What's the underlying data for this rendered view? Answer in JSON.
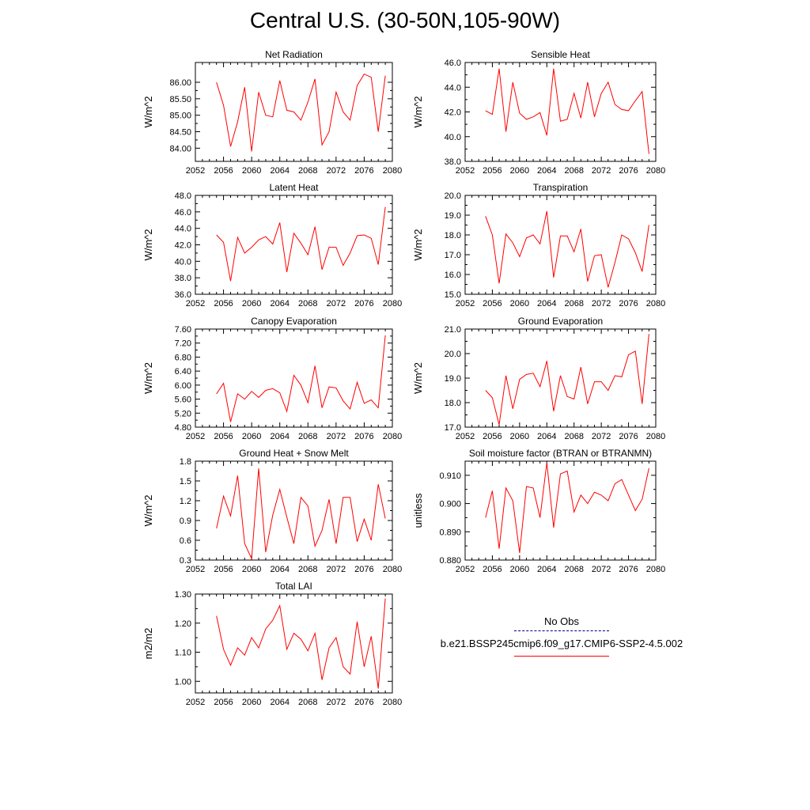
{
  "page_title": "Central U.S. (30-50N,105-90W)",
  "colors": {
    "model": "#ff0000",
    "obs": "#000080",
    "axis": "#000000"
  },
  "legend": {
    "items": [
      {
        "label": "No Obs",
        "style": "dashed",
        "color": "#000080"
      },
      {
        "label": "b.e21.BSSP245cmip6.f09_g17.CMIP6-SSP2-4.5.002",
        "style": "solid",
        "color": "#ff0000"
      }
    ]
  },
  "chart_data": [
    {
      "type": "line",
      "title": "Net Radiation",
      "ylabel": "W/m^2",
      "xlim": [
        2052,
        2080
      ],
      "ylim": [
        83.6,
        86.6
      ],
      "xticks": [
        2052,
        2056,
        2060,
        2064,
        2068,
        2072,
        2076,
        2080
      ],
      "yticks": [
        "84.00",
        "84.50",
        "85.00",
        "85.50",
        "86.00"
      ],
      "x": [
        2055,
        2056,
        2057,
        2058,
        2059,
        2060,
        2061,
        2062,
        2063,
        2064,
        2065,
        2066,
        2067,
        2068,
        2069,
        2070,
        2071,
        2072,
        2073,
        2074,
        2075,
        2076,
        2077,
        2078,
        2079
      ],
      "series": [
        {
          "name": "b.e21.BSSP245cmip6.f09_g17.CMIP6-SSP2-4.5.002",
          "values": [
            86.0,
            85.3,
            84.05,
            84.8,
            85.85,
            83.9,
            85.7,
            85.0,
            84.95,
            86.05,
            85.15,
            85.1,
            84.85,
            85.4,
            86.1,
            84.1,
            84.5,
            85.7,
            85.1,
            84.85,
            85.9,
            86.25,
            86.15,
            84.5,
            86.2
          ]
        }
      ]
    },
    {
      "type": "line",
      "title": "Sensible Heat",
      "ylabel": "W/m^2",
      "xlim": [
        2052,
        2080
      ],
      "ylim": [
        38.0,
        46.0
      ],
      "xticks": [
        2052,
        2056,
        2060,
        2064,
        2068,
        2072,
        2076,
        2080
      ],
      "yticks": [
        "38.0",
        "40.0",
        "42.0",
        "44.0",
        "46.0"
      ],
      "x": [
        2055,
        2056,
        2057,
        2058,
        2059,
        2060,
        2061,
        2062,
        2063,
        2064,
        2065,
        2066,
        2067,
        2068,
        2069,
        2070,
        2071,
        2072,
        2073,
        2074,
        2075,
        2076,
        2077,
        2078,
        2079
      ],
      "series": [
        {
          "name": "b.e21.BSSP245cmip6.f09_g17.CMIP6-SSP2-4.5.002",
          "values": [
            42.1,
            41.8,
            45.5,
            40.4,
            44.4,
            41.9,
            41.4,
            41.6,
            41.95,
            40.1,
            45.5,
            41.25,
            41.4,
            43.5,
            41.5,
            44.4,
            41.6,
            43.5,
            44.4,
            42.6,
            42.2,
            42.1,
            42.9,
            43.65,
            38.6
          ]
        }
      ]
    },
    {
      "type": "line",
      "title": "Latent Heat",
      "ylabel": "W/m^2",
      "xlim": [
        2052,
        2080
      ],
      "ylim": [
        36.0,
        48.0
      ],
      "xticks": [
        2052,
        2056,
        2060,
        2064,
        2068,
        2072,
        2076,
        2080
      ],
      "yticks": [
        "36.0",
        "38.0",
        "40.0",
        "42.0",
        "44.0",
        "46.0",
        "48.0"
      ],
      "x": [
        2055,
        2056,
        2057,
        2058,
        2059,
        2060,
        2061,
        2062,
        2063,
        2064,
        2065,
        2066,
        2067,
        2068,
        2069,
        2070,
        2071,
        2072,
        2073,
        2074,
        2075,
        2076,
        2077,
        2078,
        2079
      ],
      "series": [
        {
          "name": "b.e21.BSSP245cmip6.f09_g17.CMIP6-SSP2-4.5.002",
          "values": [
            43.2,
            42.3,
            37.6,
            42.9,
            41.0,
            41.7,
            42.6,
            43.0,
            42.1,
            44.7,
            38.7,
            43.4,
            42.2,
            40.8,
            44.2,
            39.0,
            41.7,
            41.7,
            39.5,
            41.0,
            43.1,
            43.2,
            42.8,
            39.6,
            46.6
          ]
        }
      ]
    },
    {
      "type": "line",
      "title": "Transpiration",
      "ylabel": "W/m^2",
      "xlim": [
        2052,
        2080
      ],
      "ylim": [
        15.0,
        20.0
      ],
      "xticks": [
        2052,
        2056,
        2060,
        2064,
        2068,
        2072,
        2076,
        2080
      ],
      "yticks": [
        "15.0",
        "16.0",
        "17.0",
        "18.0",
        "19.0",
        "20.0"
      ],
      "x": [
        2055,
        2056,
        2057,
        2058,
        2059,
        2060,
        2061,
        2062,
        2063,
        2064,
        2065,
        2066,
        2067,
        2068,
        2069,
        2070,
        2071,
        2072,
        2073,
        2074,
        2075,
        2076,
        2077,
        2078,
        2079
      ],
      "series": [
        {
          "name": "b.e21.BSSP245cmip6.f09_g17.CMIP6-SSP2-4.5.002",
          "values": [
            18.95,
            18.0,
            15.55,
            18.05,
            17.6,
            16.9,
            17.85,
            18.0,
            17.55,
            19.2,
            15.85,
            17.95,
            17.95,
            17.15,
            18.3,
            15.65,
            16.95,
            17.0,
            15.35,
            16.6,
            18.0,
            17.8,
            17.1,
            16.15,
            18.5
          ]
        }
      ]
    },
    {
      "type": "line",
      "title": "Canopy Evaporation",
      "ylabel": "W/m^2",
      "xlim": [
        2052,
        2080
      ],
      "ylim": [
        4.8,
        7.6
      ],
      "xticks": [
        2052,
        2056,
        2060,
        2064,
        2068,
        2072,
        2076,
        2080
      ],
      "yticks": [
        "4.80",
        "5.20",
        "5.60",
        "6.00",
        "6.40",
        "6.80",
        "7.20",
        "7.60"
      ],
      "x": [
        2055,
        2056,
        2057,
        2058,
        2059,
        2060,
        2061,
        2062,
        2063,
        2064,
        2065,
        2066,
        2067,
        2068,
        2069,
        2070,
        2071,
        2072,
        2073,
        2074,
        2075,
        2076,
        2077,
        2078,
        2079
      ],
      "series": [
        {
          "name": "b.e21.BSSP245cmip6.f09_g17.CMIP6-SSP2-4.5.002",
          "values": [
            5.75,
            6.05,
            4.95,
            5.75,
            5.6,
            5.82,
            5.65,
            5.85,
            5.9,
            5.78,
            5.25,
            6.28,
            6.0,
            5.5,
            6.55,
            5.35,
            5.95,
            5.92,
            5.55,
            5.32,
            6.08,
            5.48,
            5.58,
            5.35,
            7.42
          ]
        }
      ]
    },
    {
      "type": "line",
      "title": "Ground Evaporation",
      "ylabel": "W/m^2",
      "xlim": [
        2052,
        2080
      ],
      "ylim": [
        17.0,
        21.0
      ],
      "xticks": [
        2052,
        2056,
        2060,
        2064,
        2068,
        2072,
        2076,
        2080
      ],
      "yticks": [
        "17.0",
        "18.0",
        "19.0",
        "20.0",
        "21.0"
      ],
      "x": [
        2055,
        2056,
        2057,
        2058,
        2059,
        2060,
        2061,
        2062,
        2063,
        2064,
        2065,
        2066,
        2067,
        2068,
        2069,
        2070,
        2071,
        2072,
        2073,
        2074,
        2075,
        2076,
        2077,
        2078,
        2079
      ],
      "series": [
        {
          "name": "b.e21.BSSP245cmip6.f09_g17.CMIP6-SSP2-4.5.002",
          "values": [
            18.5,
            18.2,
            17.1,
            19.1,
            17.75,
            18.95,
            19.15,
            19.2,
            18.65,
            19.7,
            17.65,
            19.1,
            18.25,
            18.15,
            19.45,
            17.95,
            18.85,
            18.85,
            18.5,
            19.1,
            19.05,
            19.95,
            20.1,
            17.95,
            20.8
          ]
        }
      ]
    },
    {
      "type": "line",
      "title": "Ground Heat + Snow Melt",
      "ylabel": "W/m^2",
      "xlim": [
        2052,
        2080
      ],
      "ylim": [
        0.3,
        1.8
      ],
      "xticks": [
        2052,
        2056,
        2060,
        2064,
        2068,
        2072,
        2076,
        2080
      ],
      "yticks": [
        "0.3",
        "0.6",
        "0.9",
        "1.2",
        "1.5",
        "1.8"
      ],
      "x": [
        2055,
        2056,
        2057,
        2058,
        2059,
        2060,
        2061,
        2062,
        2063,
        2064,
        2065,
        2066,
        2067,
        2068,
        2069,
        2070,
        2071,
        2072,
        2073,
        2074,
        2075,
        2076,
        2077,
        2078,
        2079
      ],
      "series": [
        {
          "name": "b.e21.BSSP245cmip6.f09_g17.CMIP6-SSP2-4.5.002",
          "values": [
            0.78,
            1.27,
            0.97,
            1.58,
            0.55,
            0.32,
            1.69,
            0.42,
            0.98,
            1.37,
            0.95,
            0.55,
            1.25,
            1.12,
            0.51,
            0.75,
            1.22,
            0.55,
            1.25,
            1.25,
            0.58,
            0.92,
            0.6,
            1.45,
            0.93
          ]
        }
      ]
    },
    {
      "type": "line",
      "title": "Soil moisture factor (BTRAN or BTRANMN)",
      "ylabel": "unitless",
      "xlim": [
        2052,
        2080
      ],
      "ylim": [
        0.88,
        0.915
      ],
      "xticks": [
        2052,
        2056,
        2060,
        2064,
        2068,
        2072,
        2076,
        2080
      ],
      "yticks": [
        "0.880",
        "0.890",
        "0.900",
        "0.910"
      ],
      "x": [
        2055,
        2056,
        2057,
        2058,
        2059,
        2060,
        2061,
        2062,
        2063,
        2064,
        2065,
        2066,
        2067,
        2068,
        2069,
        2070,
        2071,
        2072,
        2073,
        2074,
        2075,
        2076,
        2077,
        2078,
        2079
      ],
      "series": [
        {
          "name": "b.e21.BSSP245cmip6.f09_g17.CMIP6-SSP2-4.5.002",
          "values": [
            0.895,
            0.9045,
            0.884,
            0.9055,
            0.901,
            0.8825,
            0.906,
            0.9055,
            0.895,
            0.9145,
            0.8915,
            0.9105,
            0.9115,
            0.897,
            0.903,
            0.9,
            0.904,
            0.903,
            0.901,
            0.907,
            0.9085,
            0.903,
            0.8975,
            0.9015,
            0.9125
          ]
        }
      ]
    },
    {
      "type": "line",
      "title": "Total LAI",
      "ylabel": "m2/m2",
      "xlim": [
        2052,
        2080
      ],
      "ylim": [
        0.96,
        1.3
      ],
      "xticks": [
        2052,
        2056,
        2060,
        2064,
        2068,
        2072,
        2076,
        2080
      ],
      "yticks": [
        "1.00",
        "1.10",
        "1.20",
        "1.30"
      ],
      "x": [
        2055,
        2056,
        2057,
        2058,
        2059,
        2060,
        2061,
        2062,
        2063,
        2064,
        2065,
        2066,
        2067,
        2068,
        2069,
        2070,
        2071,
        2072,
        2073,
        2074,
        2075,
        2076,
        2077,
        2078,
        2079
      ],
      "series": [
        {
          "name": "b.e21.BSSP245cmip6.f09_g17.CMIP6-SSP2-4.5.002",
          "values": [
            1.225,
            1.11,
            1.055,
            1.115,
            1.09,
            1.15,
            1.115,
            1.18,
            1.21,
            1.26,
            1.11,
            1.165,
            1.145,
            1.105,
            1.165,
            1.005,
            1.115,
            1.15,
            1.05,
            1.025,
            1.205,
            1.05,
            1.155,
            0.975,
            1.285
          ]
        }
      ]
    }
  ]
}
